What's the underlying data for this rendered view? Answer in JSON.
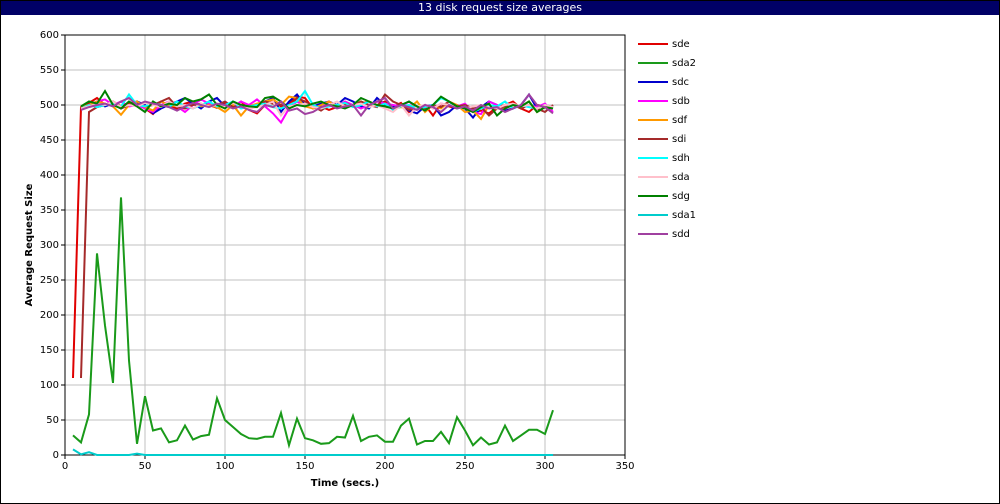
{
  "chart_data": {
    "type": "line",
    "title": "13 disk request size averages",
    "x_label": "Time (secs.)",
    "y_label": "Average Request Size",
    "xlim": [
      0,
      350
    ],
    "ylim": [
      0,
      600
    ],
    "xticks": [
      0,
      50,
      100,
      150,
      200,
      250,
      300,
      350
    ],
    "yticks": [
      0,
      50,
      100,
      150,
      200,
      250,
      300,
      350,
      400,
      450,
      500,
      550,
      600
    ],
    "grid": true,
    "legend": "right",
    "x": [
      5,
      10,
      15,
      20,
      25,
      30,
      35,
      40,
      45,
      50,
      55,
      60,
      65,
      70,
      75,
      80,
      85,
      90,
      95,
      100,
      105,
      110,
      115,
      120,
      125,
      130,
      135,
      140,
      145,
      150,
      155,
      160,
      165,
      170,
      175,
      180,
      185,
      190,
      195,
      200,
      205,
      210,
      215,
      220,
      225,
      230,
      235,
      240,
      245,
      250,
      255,
      260,
      265,
      270,
      275,
      280,
      285,
      290,
      295,
      300,
      305
    ],
    "series": [
      {
        "name": "sde",
        "color": "#e00000",
        "values": [
          110,
          497,
          503,
          510,
          500,
          505,
          498,
          502,
          505,
          495,
          487,
          500,
          498,
          495,
          502,
          505,
          498,
          500,
          496,
          503,
          497,
          505,
          493,
          488,
          500,
          506,
          498,
          502,
          512,
          510,
          495,
          498,
          493,
          497,
          500,
          498,
          502,
          505,
          500,
          505,
          497,
          503,
          490,
          495,
          500,
          485,
          502,
          498,
          495,
          500,
          490,
          492,
          488,
          497,
          500,
          505,
          495,
          490,
          500,
          498,
          495
        ]
      },
      {
        "name": "sda2",
        "color": "#1a9a1a",
        "values": [
          28,
          18,
          58,
          288,
          185,
          103,
          368,
          135,
          16,
          84,
          35,
          38,
          18,
          21,
          42,
          22,
          27,
          29,
          81,
          50,
          40,
          30,
          24,
          23,
          26,
          26,
          60,
          14,
          52,
          24,
          21,
          16,
          17,
          26,
          25,
          56,
          20,
          26,
          28,
          19,
          19,
          42,
          52,
          15,
          20,
          20,
          33,
          17,
          54,
          35,
          14,
          25,
          15,
          18,
          42,
          20,
          28,
          36,
          36,
          30,
          64
        ]
      },
      {
        "name": "sdc",
        "color": "#0000cc",
        "values": [
          null,
          495,
          500,
          505,
          498,
          502,
          495,
          500,
          505,
          500,
          488,
          495,
          500,
          505,
          510,
          502,
          495,
          505,
          510,
          498,
          505,
          500,
          495,
          498,
          505,
          510,
          490,
          505,
          515,
          500,
          498,
          502,
          505,
          500,
          510,
          505,
          498,
          495,
          510,
          500,
          497,
          500,
          492,
          488,
          498,
          500,
          485,
          490,
          500,
          495,
          482,
          497,
          505,
          500,
          492,
          495,
          500,
          515,
          495,
          500,
          497
        ]
      },
      {
        "name": "sdb",
        "color": "#ff00ff",
        "values": [
          null,
          495,
          500,
          505,
          508,
          500,
          505,
          498,
          500,
          495,
          490,
          500,
          505,
          498,
          490,
          500,
          508,
          502,
          498,
          500,
          497,
          505,
          500,
          508,
          498,
          488,
          475,
          495,
          505,
          498,
          500,
          495,
          505,
          498,
          505,
          500,
          495,
          500,
          505,
          502,
          500,
          498,
          505,
          495,
          500,
          495,
          502,
          500,
          498,
          502,
          490,
          487,
          505,
          500,
          495,
          500,
          498,
          500,
          497,
          502,
          490
        ]
      },
      {
        "name": "sdf",
        "color": "#ff9900",
        "values": [
          null,
          497,
          500,
          505,
          502,
          498,
          486,
          500,
          505,
          497,
          492,
          505,
          500,
          498,
          495,
          502,
          498,
          500,
          497,
          490,
          500,
          485,
          498,
          502,
          505,
          508,
          500,
          512,
          510,
          498,
          495,
          500,
          505,
          498,
          497,
          500,
          505,
          500,
          500,
          498,
          495,
          497,
          495,
          505,
          490,
          500,
          495,
          505,
          500,
          490,
          492,
          480,
          500,
          495,
          497,
          500,
          498,
          505,
          490,
          497,
          495
        ]
      },
      {
        "name": "sdi",
        "color": "#a52a2a",
        "values": [
          null,
          110,
          490,
          497,
          500,
          505,
          495,
          500,
          502,
          498,
          500,
          505,
          510,
          497,
          495,
          500,
          502,
          498,
          500,
          505,
          497,
          500,
          495,
          498,
          505,
          502,
          500,
          497,
          510,
          505,
          498,
          492,
          500,
          497,
          503,
          498,
          505,
          500,
          497,
          515,
          505,
          500,
          493,
          498,
          495,
          500,
          497,
          505,
          498,
          500,
          495,
          497,
          485,
          495,
          498,
          500,
          495,
          500,
          495,
          490,
          500
        ]
      },
      {
        "name": "sdh",
        "color": "#00ffff",
        "values": [
          null,
          495,
          500,
          497,
          500,
          502,
          498,
          515,
          500,
          498,
          503,
          500,
          497,
          505,
          498,
          495,
          500,
          505,
          498,
          500,
          505,
          495,
          498,
          500,
          502,
          497,
          495,
          500,
          505,
          520,
          500,
          495,
          498,
          500,
          503,
          497,
          500,
          505,
          498,
          502,
          493,
          498,
          500,
          495,
          497,
          500,
          510,
          505,
          495,
          498,
          490,
          495,
          500,
          498,
          505,
          495,
          500,
          497,
          495,
          500,
          495
        ]
      },
      {
        "name": "sda",
        "color": "#ffc0cb",
        "values": [
          null,
          495,
          498,
          502,
          500,
          505,
          497,
          500,
          498,
          503,
          500,
          497,
          505,
          498,
          500,
          495,
          502,
          498,
          500,
          497,
          503,
          500,
          495,
          497,
          500,
          505,
          485,
          498,
          500,
          502,
          497,
          495,
          500,
          505,
          498,
          500,
          502,
          497,
          500,
          495,
          490,
          500,
          485,
          498,
          500,
          495,
          502,
          500,
          497,
          495,
          498,
          500,
          497,
          495,
          500,
          502,
          498,
          500,
          495,
          500,
          497
        ]
      },
      {
        "name": "sdg",
        "color": "#008000",
        "values": [
          null,
          498,
          505,
          502,
          520,
          500,
          495,
          505,
          498,
          490,
          505,
          498,
          502,
          500,
          510,
          505,
          508,
          515,
          500,
          495,
          505,
          500,
          498,
          497,
          510,
          512,
          505,
          495,
          500,
          498,
          502,
          505,
          500,
          498,
          495,
          500,
          510,
          505,
          500,
          498,
          495,
          500,
          505,
          498,
          492,
          500,
          512,
          505,
          498,
          495,
          490,
          497,
          502,
          485,
          495,
          500,
          498,
          505,
          490,
          497,
          495
        ]
      },
      {
        "name": "sda1",
        "color": "#00cccc",
        "values": [
          8,
          1,
          4,
          0,
          0,
          0,
          0,
          0,
          2,
          0,
          0,
          0,
          0,
          0,
          0,
          0,
          0,
          0,
          0,
          0,
          0,
          0,
          0,
          0,
          0,
          0,
          0,
          0,
          0,
          0,
          0,
          0,
          0,
          0,
          0,
          0,
          0,
          0,
          0,
          0,
          0,
          0,
          0,
          0,
          0,
          0,
          0,
          0,
          0,
          0,
          0,
          0,
          0,
          0,
          0,
          0,
          0,
          0,
          0,
          0,
          0
        ]
      },
      {
        "name": "sdd",
        "color": "#a040a0",
        "values": [
          null,
          493,
          497,
          500,
          502,
          498,
          505,
          510,
          500,
          505,
          502,
          500,
          497,
          492,
          498,
          503,
          500,
          497,
          502,
          500,
          495,
          498,
          493,
          490,
          500,
          497,
          505,
          492,
          495,
          487,
          490,
          497,
          500,
          495,
          498,
          500,
          485,
          500,
          505,
          510,
          495,
          500,
          497,
          493,
          500,
          497,
          490,
          500,
          495,
          498,
          492,
          500,
          495,
          497,
          490,
          495,
          500,
          515,
          500,
          497,
          488
        ]
      }
    ]
  }
}
